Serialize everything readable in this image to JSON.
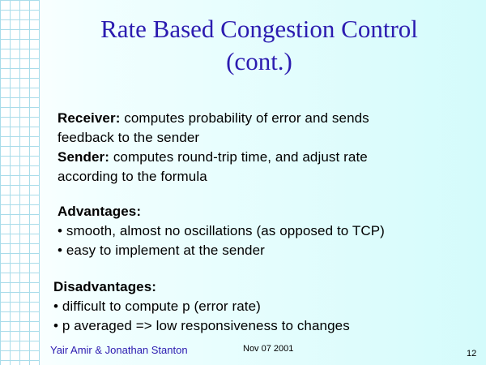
{
  "title": {
    "line1": "Rate Based Congestion Control",
    "line2": "(cont.)"
  },
  "block1": {
    "receiver_label": "Receiver:",
    "receiver_text_1": " computes probability of error and sends",
    "receiver_text_2": "feedback to the sender",
    "sender_label": "Sender:",
    "sender_text_1": " computes round-trip time, and adjust rate",
    "sender_text_2": "according to the formula"
  },
  "advantages": {
    "heading": "Advantages:",
    "items": [
      "• smooth, almost no oscillations (as opposed to TCP)",
      "• easy to implement at the sender"
    ]
  },
  "disadvantages": {
    "heading": "Disadvantages:",
    "items": [
      "• difficult to compute p (error rate)",
      "• p averaged => low responsiveness to changes"
    ]
  },
  "footer": {
    "author": "Yair Amir & Jonathan Stanton",
    "date": "Nov 07 2001",
    "page": "12"
  }
}
